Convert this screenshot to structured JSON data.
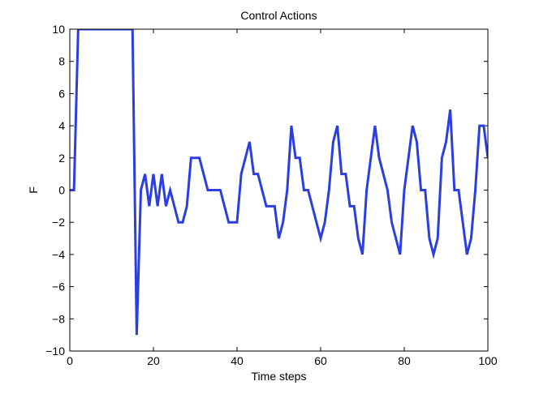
{
  "chart_data": {
    "type": "line",
    "title": "Control Actions",
    "xlabel": "Time steps",
    "ylabel": "F",
    "xlim": [
      0,
      100
    ],
    "ylim": [
      -10,
      10
    ],
    "xticks": [
      0,
      20,
      40,
      60,
      80,
      100
    ],
    "yticks": [
      -10,
      -8,
      -6,
      -4,
      -2,
      0,
      2,
      4,
      6,
      8,
      10
    ],
    "xtick_labels": [
      "0",
      "20",
      "40",
      "60",
      "80",
      "100"
    ],
    "ytick_labels": [
      "−10",
      "−8",
      "−6",
      "−4",
      "−2",
      "0",
      "2",
      "4",
      "6",
      "8",
      "10"
    ],
    "grid": false,
    "line_color": "#2b3fe0",
    "series": [
      {
        "x": [
          0,
          1,
          2,
          3,
          15,
          16,
          17,
          18,
          19,
          20,
          21,
          22,
          23,
          24,
          25,
          26,
          27,
          28,
          29,
          30,
          31,
          32,
          33,
          34,
          35,
          36,
          37,
          38,
          39,
          40,
          41,
          42,
          43,
          44,
          45,
          46,
          47,
          48,
          49,
          50,
          51,
          52,
          53,
          54,
          55,
          56,
          57,
          58,
          59,
          60,
          61,
          62,
          63,
          64,
          65,
          66,
          67,
          68,
          69,
          70,
          71,
          72,
          73,
          74,
          75,
          76,
          77,
          78,
          79,
          80,
          81,
          82,
          83,
          84,
          85,
          86,
          87,
          88,
          89,
          90,
          91,
          92,
          93,
          94,
          95,
          96,
          97,
          98,
          99,
          100
        ],
        "y": [
          0,
          0,
          10,
          10,
          10,
          -9,
          0,
          1,
          -1,
          1,
          -1,
          1,
          -1,
          0,
          -1,
          -2,
          -2,
          -1,
          2,
          2,
          2,
          1,
          0,
          0,
          0,
          0,
          -1,
          -2,
          -2,
          -2,
          1,
          2,
          3,
          1,
          1,
          0,
          -1,
          -1,
          -1,
          -3,
          -2,
          0,
          4,
          2,
          2,
          0,
          0,
          -1,
          -2,
          -3,
          -2,
          0,
          3,
          4,
          1,
          1,
          -1,
          -1,
          -3,
          -4,
          0,
          2,
          4,
          2,
          1,
          0,
          -2,
          -3,
          -4,
          0,
          2,
          4,
          3,
          0,
          0,
          -3,
          -4,
          -3,
          2,
          3,
          5,
          0,
          0,
          -2,
          -4,
          -3,
          0,
          4,
          4,
          2
        ]
      }
    ]
  }
}
